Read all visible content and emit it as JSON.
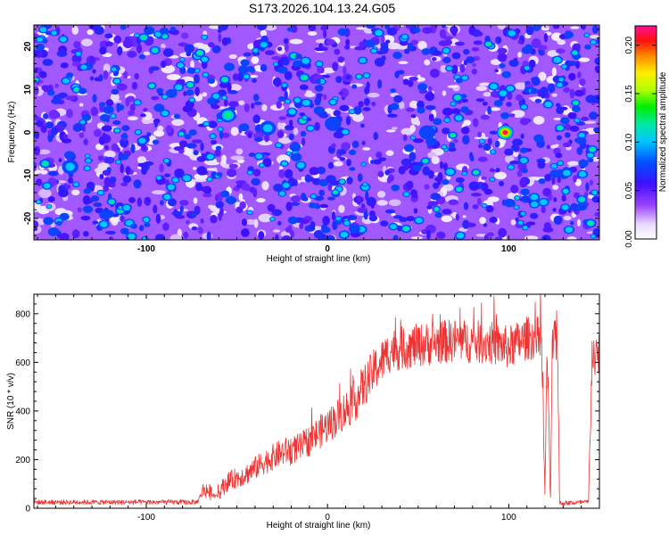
{
  "title": "S173.2026.104.13.24.G05",
  "chart_data": [
    {
      "type": "heatmap",
      "xlabel": "Height of straight line (km)",
      "ylabel": "Frequency (Hz)",
      "xlim": [
        -162,
        150
      ],
      "ylim": [
        -25,
        25
      ],
      "xticks": [
        -100,
        0,
        100
      ],
      "yticks": [
        -20,
        -10,
        0,
        10,
        20
      ],
      "colorbar": {
        "label": "Normalized spectral amplitude",
        "range": [
          0,
          0.22
        ],
        "ticks": [
          "0.00",
          "0.05",
          "0.10",
          "0.15",
          "0.20"
        ],
        "tick_values": [
          0,
          0.05,
          0.1,
          0.15,
          0.2
        ]
      },
      "peak": {
        "x": 98,
        "y": 0,
        "value": 0.22
      },
      "secondary_peaks": [
        {
          "x": -55,
          "y": 4,
          "value": 0.12
        },
        {
          "x": -33,
          "y": 1,
          "value": 0.1
        },
        {
          "x": -142,
          "y": -8,
          "value": 0.1
        },
        {
          "x": 55,
          "y": 0,
          "value": 0.09
        },
        {
          "x": 3,
          "y": 2,
          "value": 0.09
        }
      ]
    },
    {
      "type": "line",
      "xlabel": "Height of straight line (km)",
      "ylabel": "SNR (10 * v/v)",
      "xlim": [
        -162,
        150
      ],
      "ylim": [
        0,
        880
      ],
      "xticks": [
        -100,
        0,
        100
      ],
      "yticks": [
        0,
        200,
        400,
        600,
        800
      ],
      "color": "#ee3333",
      "profile_x": [
        -162,
        -100,
        -72,
        -68,
        -62,
        -55,
        -45,
        -35,
        -25,
        -15,
        -5,
        5,
        15,
        25,
        35,
        50,
        70,
        90,
        100,
        110,
        118,
        120,
        121,
        123,
        124,
        125,
        127,
        128,
        144,
        146,
        148,
        150
      ],
      "profile_y": [
        25,
        25,
        25,
        80,
        50,
        110,
        140,
        190,
        230,
        250,
        310,
        370,
        440,
        560,
        650,
        670,
        690,
        680,
        660,
        700,
        700,
        30,
        680,
        30,
        650,
        700,
        650,
        20,
        25,
        650,
        600,
        650
      ]
    }
  ]
}
